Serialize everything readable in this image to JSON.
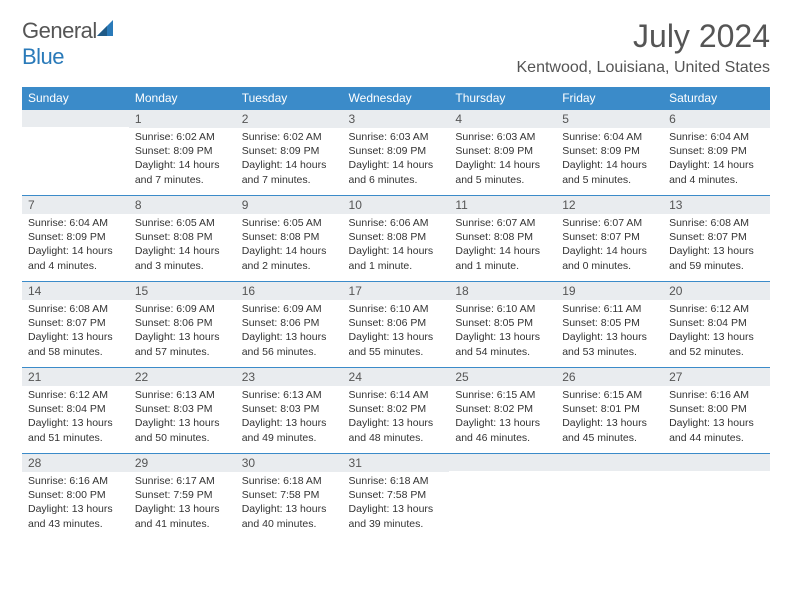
{
  "brand": {
    "part1": "General",
    "part2": "Blue"
  },
  "title": "July 2024",
  "location": "Kentwood, Louisiana, United States",
  "colors": {
    "header_bg": "#3b8bc9",
    "header_text": "#ffffff",
    "daynum_bg": "#e9ecef",
    "row_border": "#3b8bc9",
    "body_text": "#333333",
    "title_text": "#555555",
    "brand_blue": "#2a7ab9"
  },
  "weekdays": [
    "Sunday",
    "Monday",
    "Tuesday",
    "Wednesday",
    "Thursday",
    "Friday",
    "Saturday"
  ],
  "weeks": [
    [
      {
        "n": "",
        "sunrise": "",
        "sunset": "",
        "daylight": ""
      },
      {
        "n": "1",
        "sunrise": "Sunrise: 6:02 AM",
        "sunset": "Sunset: 8:09 PM",
        "daylight": "Daylight: 14 hours and 7 minutes."
      },
      {
        "n": "2",
        "sunrise": "Sunrise: 6:02 AM",
        "sunset": "Sunset: 8:09 PM",
        "daylight": "Daylight: 14 hours and 7 minutes."
      },
      {
        "n": "3",
        "sunrise": "Sunrise: 6:03 AM",
        "sunset": "Sunset: 8:09 PM",
        "daylight": "Daylight: 14 hours and 6 minutes."
      },
      {
        "n": "4",
        "sunrise": "Sunrise: 6:03 AM",
        "sunset": "Sunset: 8:09 PM",
        "daylight": "Daylight: 14 hours and 5 minutes."
      },
      {
        "n": "5",
        "sunrise": "Sunrise: 6:04 AM",
        "sunset": "Sunset: 8:09 PM",
        "daylight": "Daylight: 14 hours and 5 minutes."
      },
      {
        "n": "6",
        "sunrise": "Sunrise: 6:04 AM",
        "sunset": "Sunset: 8:09 PM",
        "daylight": "Daylight: 14 hours and 4 minutes."
      }
    ],
    [
      {
        "n": "7",
        "sunrise": "Sunrise: 6:04 AM",
        "sunset": "Sunset: 8:09 PM",
        "daylight": "Daylight: 14 hours and 4 minutes."
      },
      {
        "n": "8",
        "sunrise": "Sunrise: 6:05 AM",
        "sunset": "Sunset: 8:08 PM",
        "daylight": "Daylight: 14 hours and 3 minutes."
      },
      {
        "n": "9",
        "sunrise": "Sunrise: 6:05 AM",
        "sunset": "Sunset: 8:08 PM",
        "daylight": "Daylight: 14 hours and 2 minutes."
      },
      {
        "n": "10",
        "sunrise": "Sunrise: 6:06 AM",
        "sunset": "Sunset: 8:08 PM",
        "daylight": "Daylight: 14 hours and 1 minute."
      },
      {
        "n": "11",
        "sunrise": "Sunrise: 6:07 AM",
        "sunset": "Sunset: 8:08 PM",
        "daylight": "Daylight: 14 hours and 1 minute."
      },
      {
        "n": "12",
        "sunrise": "Sunrise: 6:07 AM",
        "sunset": "Sunset: 8:07 PM",
        "daylight": "Daylight: 14 hours and 0 minutes."
      },
      {
        "n": "13",
        "sunrise": "Sunrise: 6:08 AM",
        "sunset": "Sunset: 8:07 PM",
        "daylight": "Daylight: 13 hours and 59 minutes."
      }
    ],
    [
      {
        "n": "14",
        "sunrise": "Sunrise: 6:08 AM",
        "sunset": "Sunset: 8:07 PM",
        "daylight": "Daylight: 13 hours and 58 minutes."
      },
      {
        "n": "15",
        "sunrise": "Sunrise: 6:09 AM",
        "sunset": "Sunset: 8:06 PM",
        "daylight": "Daylight: 13 hours and 57 minutes."
      },
      {
        "n": "16",
        "sunrise": "Sunrise: 6:09 AM",
        "sunset": "Sunset: 8:06 PM",
        "daylight": "Daylight: 13 hours and 56 minutes."
      },
      {
        "n": "17",
        "sunrise": "Sunrise: 6:10 AM",
        "sunset": "Sunset: 8:06 PM",
        "daylight": "Daylight: 13 hours and 55 minutes."
      },
      {
        "n": "18",
        "sunrise": "Sunrise: 6:10 AM",
        "sunset": "Sunset: 8:05 PM",
        "daylight": "Daylight: 13 hours and 54 minutes."
      },
      {
        "n": "19",
        "sunrise": "Sunrise: 6:11 AM",
        "sunset": "Sunset: 8:05 PM",
        "daylight": "Daylight: 13 hours and 53 minutes."
      },
      {
        "n": "20",
        "sunrise": "Sunrise: 6:12 AM",
        "sunset": "Sunset: 8:04 PM",
        "daylight": "Daylight: 13 hours and 52 minutes."
      }
    ],
    [
      {
        "n": "21",
        "sunrise": "Sunrise: 6:12 AM",
        "sunset": "Sunset: 8:04 PM",
        "daylight": "Daylight: 13 hours and 51 minutes."
      },
      {
        "n": "22",
        "sunrise": "Sunrise: 6:13 AM",
        "sunset": "Sunset: 8:03 PM",
        "daylight": "Daylight: 13 hours and 50 minutes."
      },
      {
        "n": "23",
        "sunrise": "Sunrise: 6:13 AM",
        "sunset": "Sunset: 8:03 PM",
        "daylight": "Daylight: 13 hours and 49 minutes."
      },
      {
        "n": "24",
        "sunrise": "Sunrise: 6:14 AM",
        "sunset": "Sunset: 8:02 PM",
        "daylight": "Daylight: 13 hours and 48 minutes."
      },
      {
        "n": "25",
        "sunrise": "Sunrise: 6:15 AM",
        "sunset": "Sunset: 8:02 PM",
        "daylight": "Daylight: 13 hours and 46 minutes."
      },
      {
        "n": "26",
        "sunrise": "Sunrise: 6:15 AM",
        "sunset": "Sunset: 8:01 PM",
        "daylight": "Daylight: 13 hours and 45 minutes."
      },
      {
        "n": "27",
        "sunrise": "Sunrise: 6:16 AM",
        "sunset": "Sunset: 8:00 PM",
        "daylight": "Daylight: 13 hours and 44 minutes."
      }
    ],
    [
      {
        "n": "28",
        "sunrise": "Sunrise: 6:16 AM",
        "sunset": "Sunset: 8:00 PM",
        "daylight": "Daylight: 13 hours and 43 minutes."
      },
      {
        "n": "29",
        "sunrise": "Sunrise: 6:17 AM",
        "sunset": "Sunset: 7:59 PM",
        "daylight": "Daylight: 13 hours and 41 minutes."
      },
      {
        "n": "30",
        "sunrise": "Sunrise: 6:18 AM",
        "sunset": "Sunset: 7:58 PM",
        "daylight": "Daylight: 13 hours and 40 minutes."
      },
      {
        "n": "31",
        "sunrise": "Sunrise: 6:18 AM",
        "sunset": "Sunset: 7:58 PM",
        "daylight": "Daylight: 13 hours and 39 minutes."
      },
      {
        "n": "",
        "sunrise": "",
        "sunset": "",
        "daylight": ""
      },
      {
        "n": "",
        "sunrise": "",
        "sunset": "",
        "daylight": ""
      },
      {
        "n": "",
        "sunrise": "",
        "sunset": "",
        "daylight": ""
      }
    ]
  ]
}
